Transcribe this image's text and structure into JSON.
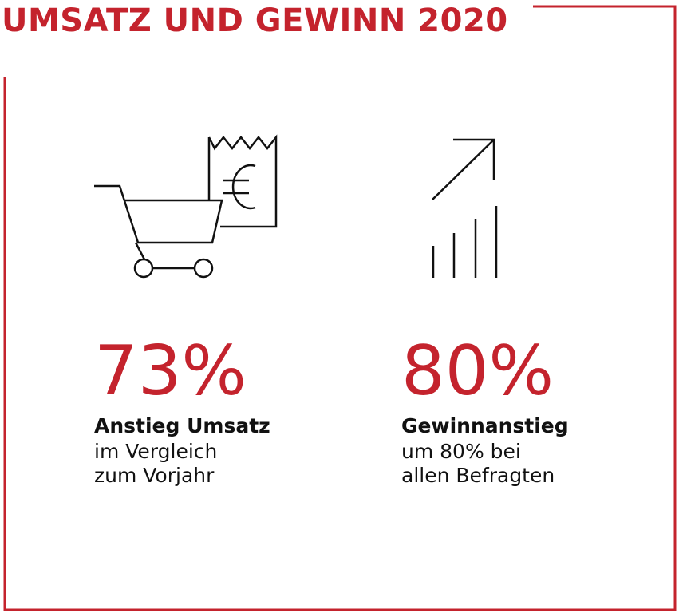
{
  "header": {
    "title": "UMSATZ UND GEWINN 2020"
  },
  "colors": {
    "accent": "#c4232d",
    "text": "#111111",
    "background": "#ffffff"
  },
  "stats": [
    {
      "icon": "shopping-cart-receipt-icon",
      "value": "73%",
      "heading": "Anstieg Umsatz",
      "line1": "im Vergleich",
      "line2": "zum Vorjahr"
    },
    {
      "icon": "growth-arrow-icon",
      "value": "80%",
      "heading": "Gewinnanstieg",
      "line1": "um 80% bei",
      "line2": "allen Befragten"
    }
  ]
}
